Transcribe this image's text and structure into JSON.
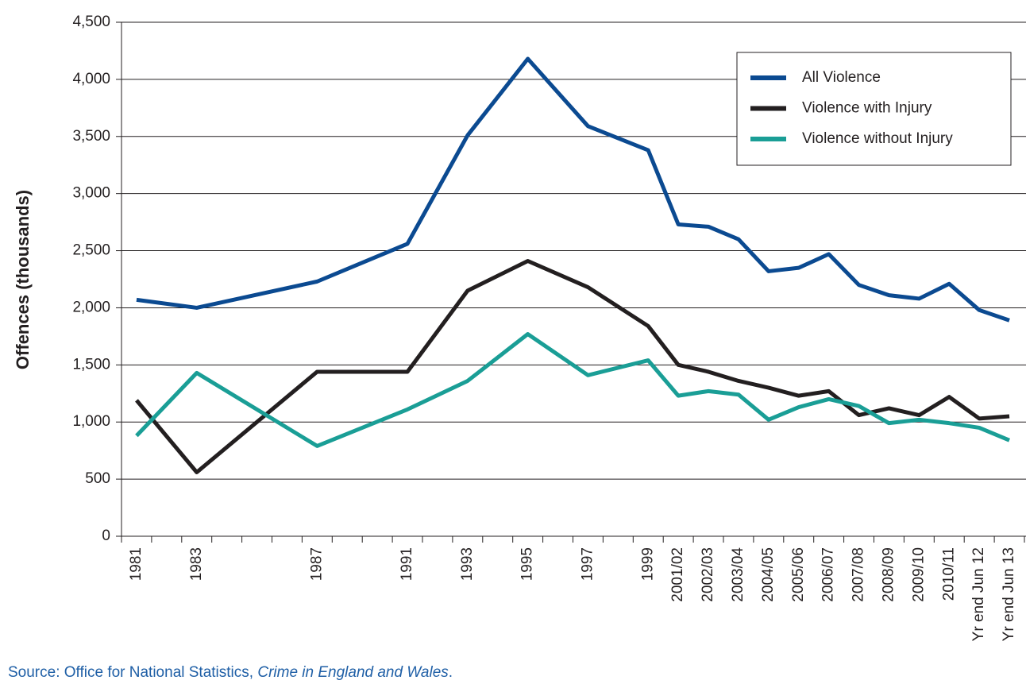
{
  "chart_data": {
    "type": "line",
    "y_label": "Offences (thousands)",
    "categories": [
      "1981",
      null,
      "1983",
      null,
      null,
      null,
      "1987",
      null,
      null,
      "1991",
      null,
      "1993",
      null,
      "1995",
      null,
      "1997",
      null,
      "1999",
      "2001/02",
      "2002/03",
      "2003/04",
      "2004/05",
      "2005/06",
      "2006/07",
      "2007/08",
      "2008/09",
      "2009/10",
      "2010/11",
      "Yr end Jun 12",
      "Yr end Jun 13"
    ],
    "series": [
      {
        "name": "All Violence",
        "color": "#0b4a91",
        "values": [
          2070,
          null,
          2000,
          null,
          null,
          null,
          2230,
          null,
          null,
          2560,
          null,
          3510,
          null,
          4180,
          null,
          3590,
          null,
          3380,
          2730,
          2710,
          2600,
          2320,
          2350,
          2470,
          2200,
          2110,
          2080,
          2210,
          1980,
          1890
        ]
      },
      {
        "name": "Violence with Injury",
        "color": "#231f20",
        "values": [
          1190,
          null,
          560,
          null,
          null,
          null,
          1440,
          null,
          null,
          1440,
          null,
          2150,
          null,
          2410,
          null,
          2180,
          null,
          1840,
          1500,
          1440,
          1360,
          1300,
          1230,
          1270,
          1060,
          1120,
          1060,
          1220,
          1030,
          1050
        ]
      },
      {
        "name": "Violence without Injury",
        "color": "#1a9e96",
        "values": [
          880,
          null,
          1430,
          null,
          null,
          null,
          790,
          null,
          null,
          1110,
          null,
          1360,
          null,
          1770,
          null,
          1410,
          null,
          1540,
          1230,
          1270,
          1240,
          1020,
          1130,
          1200,
          1140,
          990,
          1020,
          990,
          950,
          840
        ]
      }
    ],
    "ylim": [
      0,
      4500
    ],
    "yticks": [
      0,
      500,
      {
        "value": 1000,
        "label": "1,000"
      },
      {
        "value": 1500,
        "label": "1,500"
      },
      {
        "value": 2000,
        "label": "2,000"
      },
      {
        "value": 2500,
        "label": "2,500"
      },
      {
        "value": 3000,
        "label": "3,000"
      },
      {
        "value": 3500,
        "label": "3,500"
      },
      {
        "value": 4000,
        "label": "4,000"
      },
      {
        "value": 4500,
        "label": "4,500"
      }
    ],
    "grid": true,
    "legend": "top-right"
  },
  "source": {
    "prefix": "Source: Office for National Statistics, ",
    "title": "Crime in England and Wales",
    "suffix": "."
  }
}
